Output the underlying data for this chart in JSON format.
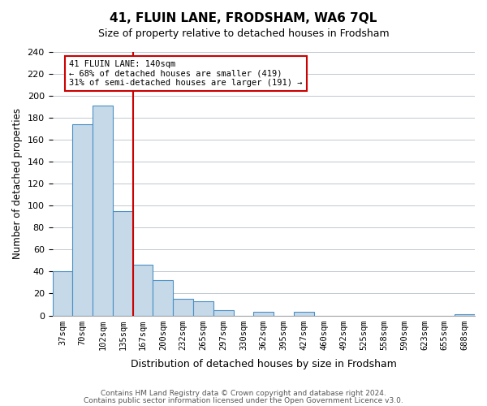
{
  "title": "41, FLUIN LANE, FRODSHAM, WA6 7QL",
  "subtitle": "Size of property relative to detached houses in Frodsham",
  "xlabel": "Distribution of detached houses by size in Frodsham",
  "ylabel": "Number of detached properties",
  "bin_labels": [
    "37sqm",
    "70sqm",
    "102sqm",
    "135sqm",
    "167sqm",
    "200sqm",
    "232sqm",
    "265sqm",
    "297sqm",
    "330sqm",
    "362sqm",
    "395sqm",
    "427sqm",
    "460sqm",
    "492sqm",
    "525sqm",
    "558sqm",
    "590sqm",
    "623sqm",
    "655sqm",
    "688sqm"
  ],
  "bar_heights": [
    40,
    174,
    191,
    95,
    46,
    32,
    15,
    13,
    5,
    0,
    3,
    0,
    3,
    0,
    0,
    0,
    0,
    0,
    0,
    0,
    1
  ],
  "bar_color": "#c5d9e8",
  "bar_edge_color": "#4a90c4",
  "property_line_x": 3,
  "property_line_color": "#cc0000",
  "ylim": [
    0,
    240
  ],
  "yticks": [
    0,
    20,
    40,
    60,
    80,
    100,
    120,
    140,
    160,
    180,
    200,
    220,
    240
  ],
  "annotation_title": "41 FLUIN LANE: 140sqm",
  "annotation_line1": "← 68% of detached houses are smaller (419)",
  "annotation_line2": "31% of semi-detached houses are larger (191) →",
  "footer_line1": "Contains HM Land Registry data © Crown copyright and database right 2024.",
  "footer_line2": "Contains public sector information licensed under the Open Government Licence v3.0.",
  "bg_color": "#ffffff",
  "grid_color": "#c0c8d0"
}
